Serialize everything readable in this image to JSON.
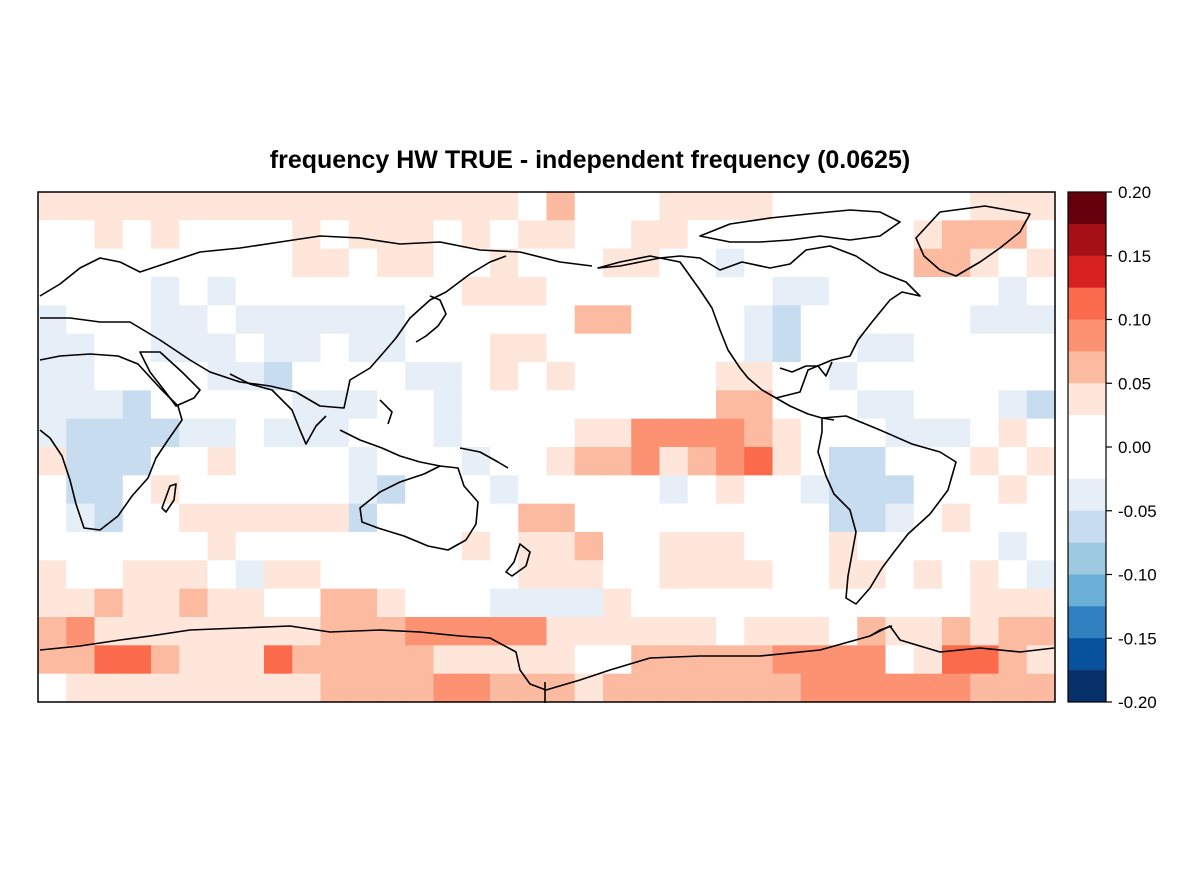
{
  "title": "frequency HW TRUE - independent frequency (0.0625)",
  "chart_data": {
    "type": "heatmap",
    "title": "frequency HW TRUE - independent frequency (0.0625)",
    "xlabel": "",
    "ylabel": "",
    "projection": "Pacific-centered world map (lon 20 to 380, lat -90 to 90), coastlines overlaid",
    "grid": false,
    "legend_position": "right",
    "lon_range": [
      20,
      380
    ],
    "lat_range": [
      -90,
      90
    ],
    "rows_cols": [
      18,
      36
    ],
    "colorbar": {
      "ticks": [
        "0.20",
        "0.15",
        "0.10",
        "0.05",
        "0.00",
        "-0.05",
        "-0.10",
        "-0.15",
        "-0.20"
      ],
      "range": [
        -0.2,
        0.2
      ],
      "levels": [
        {
          "from": 0.175,
          "to": 0.2,
          "color": "#67000d"
        },
        {
          "from": 0.15,
          "to": 0.175,
          "color": "#a50f15"
        },
        {
          "from": 0.125,
          "to": 0.15,
          "color": "#d7221f"
        },
        {
          "from": 0.1,
          "to": 0.125,
          "color": "#fb6a4a"
        },
        {
          "from": 0.075,
          "to": 0.1,
          "color": "#fc9272"
        },
        {
          "from": 0.05,
          "to": 0.075,
          "color": "#fcbba1"
        },
        {
          "from": 0.025,
          "to": 0.05,
          "color": "#fee6db"
        },
        {
          "from": 0.0,
          "to": 0.025,
          "color": "#ffffff"
        },
        {
          "from": -0.025,
          "to": 0.0,
          "color": "#ffffff"
        },
        {
          "from": -0.05,
          "to": -0.025,
          "color": "#e6eef8"
        },
        {
          "from": -0.075,
          "to": -0.05,
          "color": "#c8dcef"
        },
        {
          "from": -0.1,
          "to": -0.075,
          "color": "#9ecae1"
        },
        {
          "from": -0.125,
          "to": -0.1,
          "color": "#6baed6"
        },
        {
          "from": -0.15,
          "to": -0.125,
          "color": "#2f7fc1"
        },
        {
          "from": -0.175,
          "to": -0.15,
          "color": "#08519c"
        },
        {
          "from": -0.2,
          "to": -0.175,
          "color": "#08306b"
        }
      ]
    },
    "grid_codes_legend": {
      "0": 0.0,
      "1": 0.04,
      "2": 0.06,
      "3": 0.09,
      "4": 0.11,
      "a": -0.04,
      "b": -0.06
    },
    "grid_rows_north_to_south": [
      "111111111111111110200011110000000111",
      "001010000101110101100110000000012220",
      "000000000110110010001100a00000022101",
      "0000a0a0000000011100000000aa000000a0",
      "a000aa0aaaaaa000000220000ab000000aaa",
      "aa00aaa0aa0aa000110000000ab00aa00000",
      "aa0000aab0000aa0101000001100a0000000",
      "aaab00000aaa00a00000000022000aa000ab",
      "abbbbaa0aaa000a000011333321000aaa010",
      "1bbb0010000a000a001223123410bb000101",
      "0bb01000000ab000a00000a0100abbb00010",
      "0ab00111111b0000022000000000bba01000",
      "0000001000000001011200111000100000a0",
      "1001110a110000000111001111001101010a",
      "1121121100221000aaaa1000000000000111",
      "231111111122233333111111011102112122",
      "224421114222221111100222223333014421",
      "011111111122223322212222222333333222"
    ]
  }
}
